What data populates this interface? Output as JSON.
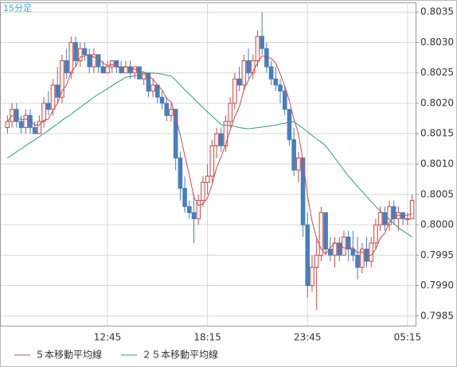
{
  "chart_data": {
    "type": "candlestick",
    "label": "15分足",
    "categories": [
      null,
      null,
      null,
      null,
      null,
      null,
      null,
      null,
      null,
      null,
      null,
      null,
      null,
      null,
      null,
      null,
      null,
      null,
      null,
      null,
      null,
      null,
      "12:45",
      null,
      null,
      null,
      null,
      null,
      null,
      null,
      null,
      null,
      null,
      null,
      null,
      null,
      null,
      null,
      null,
      null,
      null,
      null,
      null,
      null,
      "18:15",
      null,
      null,
      null,
      null,
      null,
      null,
      null,
      null,
      null,
      null,
      null,
      null,
      null,
      null,
      null,
      null,
      null,
      null,
      null,
      null,
      null,
      "23:45",
      null,
      null,
      null,
      null,
      null,
      null,
      null,
      null,
      null,
      null,
      null,
      null,
      null,
      null,
      null,
      null,
      null,
      null,
      null,
      null,
      null,
      "05:15",
      null
    ],
    "open": [
      0.8016,
      0.8017,
      0.8019,
      0.8017,
      0.8016,
      0.8018,
      0.8016,
      0.8015,
      0.8017,
      0.802,
      0.8019,
      0.8023,
      0.8021,
      0.8027,
      0.8025,
      0.803,
      0.8027,
      0.8029,
      0.8028,
      0.8026,
      0.8028,
      0.8026,
      0.8025,
      0.8026,
      0.8027,
      0.8026,
      0.8025,
      0.8026,
      0.8025,
      0.8026,
      0.8024,
      0.8025,
      0.8022,
      0.8023,
      0.8021,
      0.802,
      0.8018,
      0.8019,
      0.8011,
      0.8006,
      0.8003,
      0.8002,
      0.8001,
      0.8004,
      0.8007,
      0.8008,
      0.8013,
      0.8015,
      0.8013,
      0.8017,
      0.802,
      0.8024,
      0.8023,
      0.8027,
      0.8025,
      0.8027,
      0.8031,
      0.8029,
      0.8026,
      0.8024,
      0.8023,
      0.8022,
      0.8019,
      0.8014,
      0.8009,
      0.8011,
      0.8,
      0.799,
      0.7993,
      0.7995,
      0.8002,
      0.7996,
      0.7995,
      0.7997,
      0.7995,
      0.7998,
      0.7996,
      0.7995,
      0.7993,
      0.7996,
      0.7994,
      0.7997,
      0.8,
      0.8002,
      0.8,
      0.8003,
      0.8001,
      0.8002,
      0.8001,
      0.8001
    ],
    "high": [
      0.8018,
      0.802,
      0.802,
      0.8018,
      0.8019,
      0.8019,
      0.8017,
      0.8018,
      0.8021,
      0.8022,
      0.8024,
      0.8026,
      0.8028,
      0.8029,
      0.8031,
      0.8031,
      0.803,
      0.803,
      0.8029,
      0.8029,
      0.8028,
      0.8027,
      0.8027,
      0.8027,
      0.8027,
      0.8027,
      0.8027,
      0.8027,
      0.8026,
      0.8026,
      0.8025,
      0.8025,
      0.8024,
      0.8023,
      0.8022,
      0.8021,
      0.802,
      0.8019,
      0.8012,
      0.8008,
      0.8004,
      0.8005,
      0.8005,
      0.8008,
      0.801,
      0.8014,
      0.8016,
      0.8016,
      0.8018,
      0.8021,
      0.8025,
      0.8026,
      0.8028,
      0.8029,
      0.8028,
      0.8032,
      0.8035,
      0.803,
      0.8027,
      0.8026,
      0.8024,
      0.8023,
      0.8019,
      0.8016,
      0.8012,
      0.8011,
      0.8002,
      0.7995,
      0.7998,
      0.8003,
      0.8002,
      0.7998,
      0.7998,
      0.7998,
      0.7999,
      0.7999,
      0.7999,
      0.7998,
      0.7997,
      0.7998,
      0.7998,
      0.8001,
      0.8003,
      0.8003,
      0.8004,
      0.8004,
      0.8003,
      0.8002,
      0.8002,
      0.8005
    ],
    "low": [
      0.8015,
      0.8016,
      0.8016,
      0.8015,
      0.8015,
      0.8015,
      0.8015,
      0.8015,
      0.8016,
      0.8018,
      0.8018,
      0.802,
      0.802,
      0.8024,
      0.8024,
      0.8026,
      0.8026,
      0.8027,
      0.8025,
      0.8025,
      0.8025,
      0.8025,
      0.8025,
      0.8025,
      0.8025,
      0.8025,
      0.8025,
      0.8024,
      0.8024,
      0.8024,
      0.8023,
      0.8021,
      0.8021,
      0.802,
      0.8019,
      0.8017,
      0.8017,
      0.8009,
      0.8004,
      0.8002,
      0.8001,
      0.7997,
      0.8,
      0.8003,
      0.8005,
      0.8007,
      0.8011,
      0.8012,
      0.8012,
      0.8016,
      0.8019,
      0.8022,
      0.8022,
      0.8024,
      0.8024,
      0.8026,
      0.8028,
      0.8025,
      0.8023,
      0.8022,
      0.802,
      0.8018,
      0.8013,
      0.8008,
      0.8007,
      0.7998,
      0.7988,
      0.7989,
      0.7986,
      0.7994,
      0.7995,
      0.7994,
      0.7993,
      0.7994,
      0.7995,
      0.7994,
      0.7994,
      0.7991,
      0.7992,
      0.7993,
      0.7993,
      0.7996,
      0.7999,
      0.7999,
      0.7999,
      0.8,
      0.7999,
      0.8,
      0.8,
      0.8001
    ],
    "close": [
      0.8017,
      0.8019,
      0.8017,
      0.8016,
      0.8018,
      0.8016,
      0.8015,
      0.8017,
      0.802,
      0.8019,
      0.8023,
      0.8021,
      0.8027,
      0.8025,
      0.803,
      0.8027,
      0.8029,
      0.8028,
      0.8026,
      0.8028,
      0.8026,
      0.8025,
      0.8026,
      0.8027,
      0.8026,
      0.8025,
      0.8026,
      0.8025,
      0.8026,
      0.8024,
      0.8025,
      0.8022,
      0.8023,
      0.8021,
      0.802,
      0.8018,
      0.8019,
      0.8011,
      0.8006,
      0.8003,
      0.8002,
      0.8001,
      0.8004,
      0.8007,
      0.8008,
      0.8013,
      0.8015,
      0.8013,
      0.8017,
      0.802,
      0.8024,
      0.8023,
      0.8027,
      0.8025,
      0.8027,
      0.8031,
      0.8029,
      0.8026,
      0.8024,
      0.8023,
      0.8022,
      0.8019,
      0.8014,
      0.8009,
      0.8011,
      0.8,
      0.799,
      0.7993,
      0.7995,
      0.8002,
      0.7996,
      0.7995,
      0.7997,
      0.7995,
      0.7998,
      0.7996,
      0.7995,
      0.7993,
      0.7996,
      0.7994,
      0.7997,
      0.8,
      0.8002,
      0.8,
      0.8003,
      0.8001,
      0.8002,
      0.8001,
      0.8001,
      0.8004
    ],
    "up_color": "#c0504d",
    "up_fill": "#fdf2f2",
    "down_color": "#4a7ebb",
    "series": [
      {
        "name": "５本移動平均線",
        "color": "#c0504d",
        "values": [
          0.8017,
          0.8018,
          0.80177,
          0.80173,
          0.80174,
          0.80172,
          0.80164,
          0.80164,
          0.80172,
          0.80174,
          0.80188,
          0.802,
          0.8022,
          0.8023,
          0.80252,
          0.8026,
          0.80276,
          0.80278,
          0.8028,
          0.80276,
          0.80274,
          0.80266,
          0.80262,
          0.80264,
          0.8026,
          0.80258,
          0.8026,
          0.80258,
          0.80256,
          0.80252,
          0.80252,
          0.80244,
          0.8024,
          0.8023,
          0.80222,
          0.80208,
          0.80202,
          0.80178,
          0.80148,
          0.80114,
          0.80082,
          0.80046,
          0.80032,
          0.80034,
          0.80044,
          0.80066,
          0.80094,
          0.80112,
          0.80132,
          0.80156,
          0.80178,
          0.80194,
          0.80222,
          0.80238,
          0.80252,
          0.80266,
          0.80278,
          0.80276,
          0.80274,
          0.80266,
          0.80248,
          0.80228,
          0.80204,
          0.80174,
          0.8015,
          0.80106,
          0.80048,
          0.80006,
          0.79978,
          0.7996,
          0.79952,
          0.79962,
          0.7997,
          0.7997,
          0.79962,
          0.79962,
          0.79962,
          0.79954,
          0.79956,
          0.79948,
          0.7995,
          0.7996,
          0.79978,
          0.79986,
          0.80004,
          0.80012,
          0.80016,
          0.80014,
          0.80016,
          0.80018
        ]
      },
      {
        "name": "２５本移動平均線",
        "color": "#2e9e7a",
        "values": [
          0.8011,
          0.80115,
          0.8012,
          0.80125,
          0.8013,
          0.80135,
          0.8014,
          0.80145,
          0.8015,
          0.80155,
          0.80161,
          0.80166,
          0.80172,
          0.80177,
          0.80182,
          0.80188,
          0.80193,
          0.80199,
          0.80204,
          0.8021,
          0.80215,
          0.80219,
          0.80224,
          0.80229,
          0.80234,
          0.80238,
          0.80243,
          0.80244,
          0.80245,
          0.80247,
          0.80248,
          0.80249,
          0.8025,
          0.80249,
          0.80248,
          0.80246,
          0.80245,
          0.80238,
          0.8023,
          0.80222,
          0.80215,
          0.80208,
          0.802,
          0.80193,
          0.80186,
          0.80179,
          0.80172,
          0.80165,
          0.80164,
          0.80163,
          0.80162,
          0.8016,
          0.80159,
          0.80158,
          0.80159,
          0.8016,
          0.80161,
          0.80162,
          0.80163,
          0.80164,
          0.80166,
          0.80167,
          0.80169,
          0.8017,
          0.80164,
          0.80159,
          0.80153,
          0.80147,
          0.80141,
          0.80136,
          0.8013,
          0.8012,
          0.8011,
          0.801,
          0.8009,
          0.8008,
          0.80072,
          0.80063,
          0.80055,
          0.80047,
          0.80038,
          0.8003,
          0.80023,
          0.80016,
          0.80009,
          0.80002,
          0.79995,
          0.7999,
          0.79985,
          0.7998
        ]
      }
    ],
    "ylim": [
      0.79834,
      0.80366
    ],
    "yticks": [
      {
        "value": 0.7985,
        "label": "0.7985"
      },
      {
        "value": 0.799,
        "label": "0.7990"
      },
      0.7995,
      {
        "value": 0.8,
        "label": "0.8000"
      },
      0.8005,
      {
        "value": 0.801,
        "label": "0.8010"
      },
      0.8015,
      {
        "value": 0.802,
        "label": "0.8020"
      },
      0.8025,
      {
        "value": 0.803,
        "label": "0.8030"
      },
      0.8035
    ],
    "grid": true
  }
}
